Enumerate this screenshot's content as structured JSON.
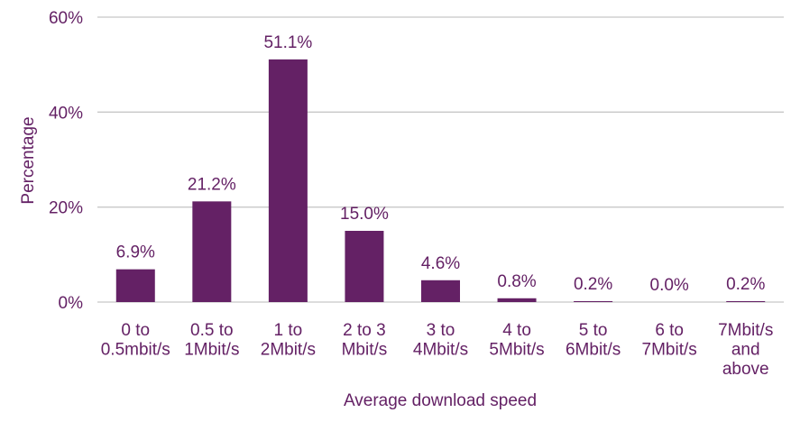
{
  "chart_data": {
    "type": "bar",
    "categories": [
      [
        "0 to",
        "0.5mbit/s"
      ],
      [
        "0.5 to",
        "1Mbit/s"
      ],
      [
        "1 to",
        "2Mbit/s"
      ],
      [
        "2  to 3",
        "Mbit/s"
      ],
      [
        "3  to",
        "4Mbit/s"
      ],
      [
        "4  to",
        "5Mbit/s"
      ],
      [
        "5  to",
        "6Mbit/s"
      ],
      [
        "6 to",
        "7Mbit/s"
      ],
      [
        "7Mbit/s",
        "and",
        "above"
      ]
    ],
    "values": [
      6.9,
      21.2,
      51.1,
      15.0,
      4.6,
      0.8,
      0.2,
      0.0,
      0.2
    ],
    "data_labels": [
      "6.9%",
      "21.2%",
      "51.1%",
      "15.0%",
      "4.6%",
      "0.8%",
      "0.2%",
      "0.0%",
      "0.2%"
    ],
    "yticks": [
      0,
      20,
      40,
      60
    ],
    "ytick_labels": [
      "0%",
      "20%",
      "40%",
      "60%"
    ],
    "ylim": [
      0,
      60
    ],
    "xlabel": "Average download speed",
    "ylabel": "Percentage",
    "grid": true,
    "colors": {
      "bar": "#642165",
      "text": "#642165",
      "grid": "#c8c8c8"
    }
  }
}
